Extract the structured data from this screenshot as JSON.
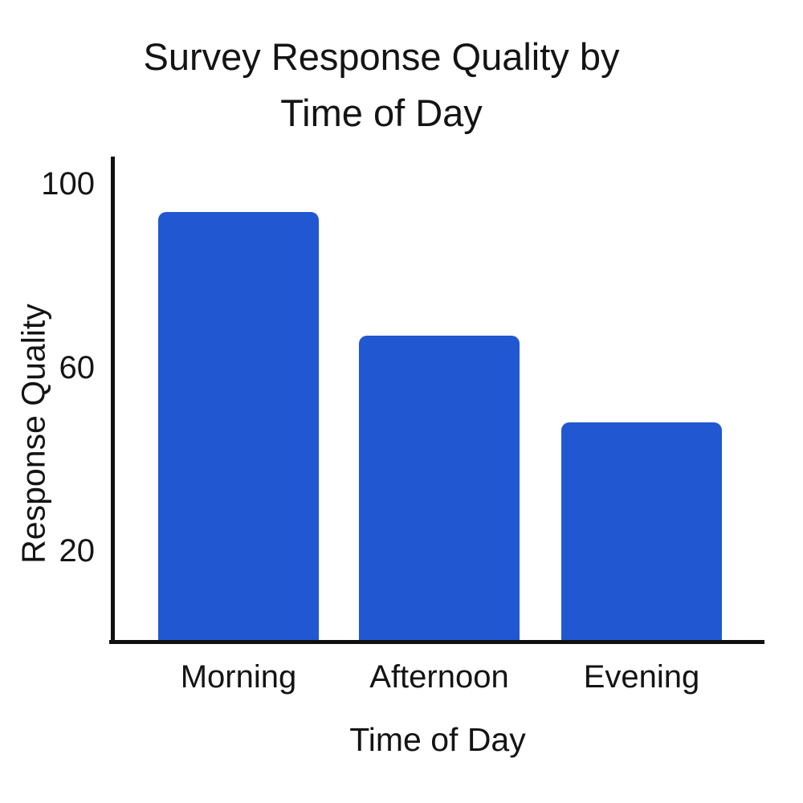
{
  "header": {
    "title_lines": [
      "Survey Response Quality by",
      "Time of Day"
    ]
  },
  "chart_data": {
    "type": "bar",
    "title": "Survey Response Quality by Time of Day",
    "categories": [
      "Morning",
      "Afternoon",
      "Evening"
    ],
    "values": [
      94,
      67,
      48
    ],
    "xlabel": "Time of Day",
    "ylabel": "Response Quality",
    "yticks": [
      20,
      60,
      100
    ],
    "ylim": [
      0,
      106
    ],
    "grid": false,
    "legend": "none",
    "bar_color": "#2158d1",
    "axis_color": "#101010",
    "text_color": "#141414",
    "background": "#ffffff"
  }
}
